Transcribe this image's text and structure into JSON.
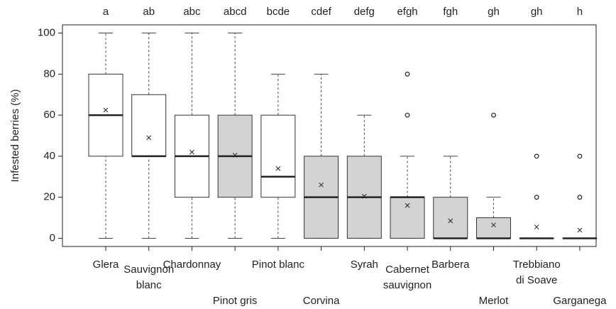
{
  "chart_data": {
    "type": "box",
    "y_label": "Infested berries (%)",
    "ylim": [
      -4,
      104
    ],
    "yticks": [
      0,
      20,
      40,
      60,
      80,
      100
    ],
    "categories": [
      [
        "Glera"
      ],
      [
        "Sauvignon",
        "blanc"
      ],
      [
        "Chardonnay"
      ],
      [
        "Pinot gris"
      ],
      [
        "Pinot blanc"
      ],
      [
        "Corvina"
      ],
      [
        "Syrah"
      ],
      [
        "Cabernet",
        "sauvignon"
      ],
      [
        "Barbera"
      ],
      [
        "Merlot"
      ],
      [
        "Trebbiano",
        "di Soave"
      ],
      [
        "Garganega"
      ]
    ],
    "groups": [
      "a",
      "ab",
      "abc",
      "abcd",
      "bcde",
      "cdef",
      "defg",
      "efgh",
      "fgh",
      "gh",
      "gh",
      "h"
    ],
    "boxes": [
      {
        "min": 0,
        "q1": 40,
        "median": 60,
        "q3": 80,
        "max": 100,
        "mean": 62.5,
        "outliers": [],
        "color": "#ffffff"
      },
      {
        "min": 0,
        "q1": 40,
        "median": 40,
        "q3": 70,
        "max": 100,
        "mean": 49,
        "outliers": [],
        "color": "#ffffff"
      },
      {
        "min": 0,
        "q1": 20,
        "median": 40,
        "q3": 60,
        "max": 100,
        "mean": 42,
        "outliers": [],
        "color": "#ffffff"
      },
      {
        "min": 0,
        "q1": 20,
        "median": 40,
        "q3": 60,
        "max": 100,
        "mean": 40.5,
        "outliers": [],
        "color": "#d3d3d3"
      },
      {
        "min": 0,
        "q1": 20,
        "median": 30,
        "q3": 60,
        "max": 80,
        "mean": 34,
        "outliers": [],
        "color": "#ffffff"
      },
      {
        "min": 0,
        "q1": 0,
        "median": 20,
        "q3": 40,
        "max": 80,
        "mean": 26,
        "outliers": [],
        "color": "#d3d3d3"
      },
      {
        "min": 0,
        "q1": 0,
        "median": 20,
        "q3": 40,
        "max": 60,
        "mean": 20.5,
        "outliers": [],
        "color": "#d3d3d3"
      },
      {
        "min": 0,
        "q1": 0,
        "median": 20,
        "q3": 20,
        "max": 40,
        "mean": 16,
        "outliers": [
          60,
          80
        ],
        "color": "#d3d3d3"
      },
      {
        "min": 0,
        "q1": 0,
        "median": 0,
        "q3": 20,
        "max": 40,
        "mean": 8.5,
        "outliers": [],
        "color": "#d3d3d3"
      },
      {
        "min": 0,
        "q1": 0,
        "median": 0,
        "q3": 10,
        "max": 20,
        "mean": 6.5,
        "outliers": [
          60
        ],
        "color": "#d3d3d3"
      },
      {
        "min": 0,
        "q1": 0,
        "median": 0,
        "q3": 0,
        "max": 0,
        "mean": 5.5,
        "outliers": [
          20,
          40
        ],
        "color": "#d3d3d3"
      },
      {
        "min": 0,
        "q1": 0,
        "median": 0,
        "q3": 0,
        "max": 0,
        "mean": 4,
        "outliers": [
          20,
          40
        ],
        "color": "#d3d3d3"
      }
    ]
  }
}
